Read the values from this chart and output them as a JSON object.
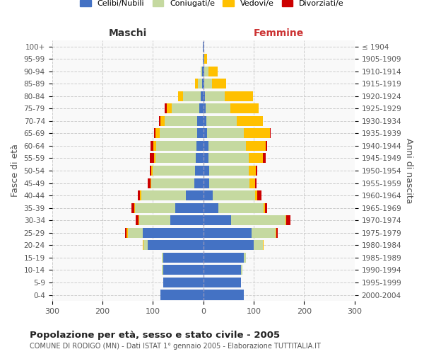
{
  "age_groups": [
    "0-4",
    "5-9",
    "10-14",
    "15-19",
    "20-24",
    "25-29",
    "30-34",
    "35-39",
    "40-44",
    "45-49",
    "50-54",
    "55-59",
    "60-64",
    "65-69",
    "70-74",
    "75-79",
    "80-84",
    "85-89",
    "90-94",
    "95-99",
    "100+"
  ],
  "birth_years": [
    "2000-2004",
    "1995-1999",
    "1990-1994",
    "1985-1989",
    "1980-1984",
    "1975-1979",
    "1970-1974",
    "1965-1969",
    "1960-1964",
    "1955-1959",
    "1950-1954",
    "1945-1949",
    "1940-1944",
    "1935-1939",
    "1930-1934",
    "1925-1929",
    "1920-1924",
    "1915-1919",
    "1910-1914",
    "1905-1909",
    "≤ 1904"
  ],
  "males_celibi": [
    85,
    80,
    80,
    80,
    110,
    120,
    65,
    55,
    35,
    18,
    16,
    15,
    14,
    12,
    12,
    8,
    5,
    3,
    2,
    1,
    1
  ],
  "males_coniugati": [
    0,
    0,
    2,
    2,
    8,
    30,
    62,
    80,
    88,
    85,
    85,
    80,
    80,
    75,
    65,
    55,
    35,
    8,
    3,
    0,
    0
  ],
  "males_vedovi": [
    0,
    0,
    0,
    0,
    2,
    2,
    2,
    2,
    2,
    2,
    2,
    3,
    5,
    8,
    8,
    10,
    10,
    5,
    0,
    0,
    0
  ],
  "males_divorziati": [
    0,
    0,
    0,
    0,
    0,
    3,
    5,
    5,
    5,
    5,
    3,
    8,
    5,
    3,
    3,
    3,
    0,
    0,
    0,
    0,
    0
  ],
  "females_nubili": [
    80,
    75,
    75,
    80,
    100,
    95,
    55,
    30,
    18,
    12,
    12,
    10,
    10,
    8,
    6,
    4,
    3,
    2,
    2,
    0,
    0
  ],
  "females_coniugate": [
    0,
    0,
    3,
    4,
    18,
    48,
    108,
    90,
    85,
    80,
    78,
    80,
    75,
    72,
    60,
    50,
    40,
    15,
    8,
    2,
    0
  ],
  "females_vedove": [
    0,
    0,
    0,
    0,
    2,
    2,
    2,
    2,
    4,
    10,
    14,
    28,
    38,
    52,
    52,
    55,
    55,
    28,
    18,
    5,
    0
  ],
  "females_divorziate": [
    0,
    0,
    0,
    0,
    0,
    2,
    8,
    5,
    8,
    3,
    3,
    5,
    3,
    2,
    0,
    0,
    0,
    0,
    0,
    0,
    0
  ],
  "colors_celibi": "#4472c4",
  "colors_coniugati": "#c5d9a0",
  "colors_vedovi": "#ffc000",
  "colors_divorziati": "#cc0000",
  "title": "Popolazione per età, sesso e stato civile - 2005",
  "subtitle": "COMUNE DI RODIGO (MN) - Dati ISTAT 1° gennaio 2005 - Elaborazione TUTTITALIA.IT",
  "label_maschi": "Maschi",
  "label_femmine": "Femmine",
  "ylabel_left": "Fasce di età",
  "ylabel_right": "Anni di nascita",
  "xlim": 300,
  "legend_labels": [
    "Celibi/Nubili",
    "Coniugati/e",
    "Vedovi/e",
    "Divorziati/e"
  ],
  "bar_height": 0.8
}
